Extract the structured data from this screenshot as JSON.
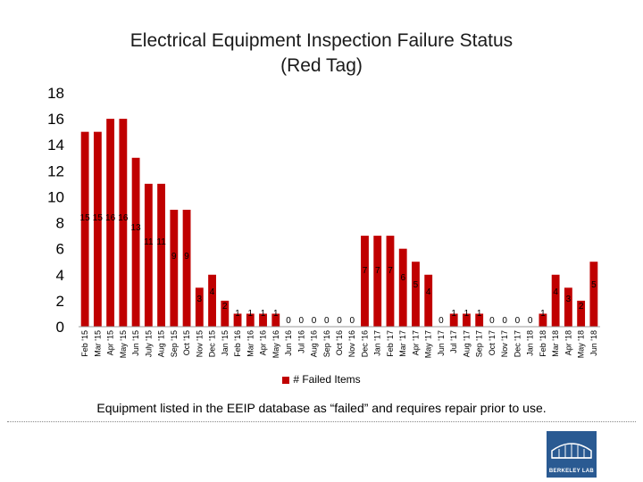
{
  "chart_data": {
    "type": "bar",
    "title_line1": "Electrical Equipment Inspection Failure Status",
    "title_line2": "(Red Tag)",
    "categories": [
      "Feb '15",
      "Mar '15",
      "Apr '15",
      "May '15",
      "Jun '15",
      "July '15",
      "Aug '15",
      "Sep '15",
      "Oct '15",
      "Nov '15",
      "Dec '15",
      "Jan '15",
      "Feb '16",
      "Mar '16",
      "Apr '16",
      "May '16",
      "Jun '16",
      "Jul '16",
      "Aug '16",
      "Sep '16",
      "Oct '16",
      "Nov '16",
      "Dec '16",
      "Jan '17",
      "Feb '17",
      "Mar '17",
      "Apr '17",
      "May '17",
      "Jun '17",
      "Jul '17",
      "Aug '17",
      "Sep '17",
      "Oct '17",
      "Nov '17",
      "Dec '17",
      "Jan '18",
      "Feb '18",
      "Mar '18",
      "Apr '18",
      "May '18",
      "Jun '18"
    ],
    "series": [
      {
        "name": "# Failed Items",
        "color": "#c00000",
        "values": [
          15,
          15,
          16,
          16,
          13,
          11,
          11,
          9,
          9,
          3,
          4,
          2,
          1,
          1,
          1,
          1,
          0,
          0,
          0,
          0,
          0,
          0,
          7,
          7,
          7,
          6,
          5,
          4,
          0,
          1,
          1,
          1,
          0,
          0,
          0,
          0,
          1,
          4,
          3,
          2,
          5
        ]
      }
    ],
    "ylim": [
      0,
      18
    ],
    "yticks": [
      "0",
      "2",
      "4",
      "6",
      "8",
      "10",
      "12",
      "14",
      "16",
      "18"
    ],
    "grid": false,
    "legend_position": "bottom"
  },
  "caption": "Equipment listed in the EEIP database as “failed” and requires repair prior to use.",
  "logo": {
    "text": "BERKELEY LAB",
    "color": "#2a5a92"
  }
}
